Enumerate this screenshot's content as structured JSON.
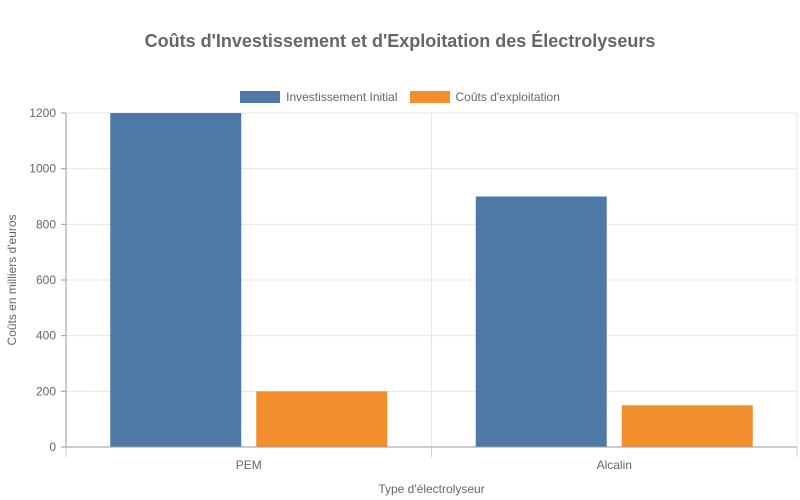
{
  "chart_data": {
    "type": "bar",
    "title": "Coûts d'Investissement et d'Exploitation des Électrolyseurs",
    "categories": [
      "PEM",
      "Alcalin"
    ],
    "series": [
      {
        "name": "Investissement Initial",
        "values": [
          1200,
          900
        ],
        "color": "#4e79a7"
      },
      {
        "name": "Coûts d'exploitation",
        "values": [
          200,
          150
        ],
        "color": "#f28e2b"
      }
    ],
    "xlabel": "Type d'électrolyseur",
    "ylabel": "Coûts en milliers d'euros",
    "ylim": [
      0,
      1200
    ],
    "yticks": [
      0,
      200,
      400,
      600,
      800,
      1000,
      1200
    ],
    "grid": true,
    "legend_position": "top"
  }
}
